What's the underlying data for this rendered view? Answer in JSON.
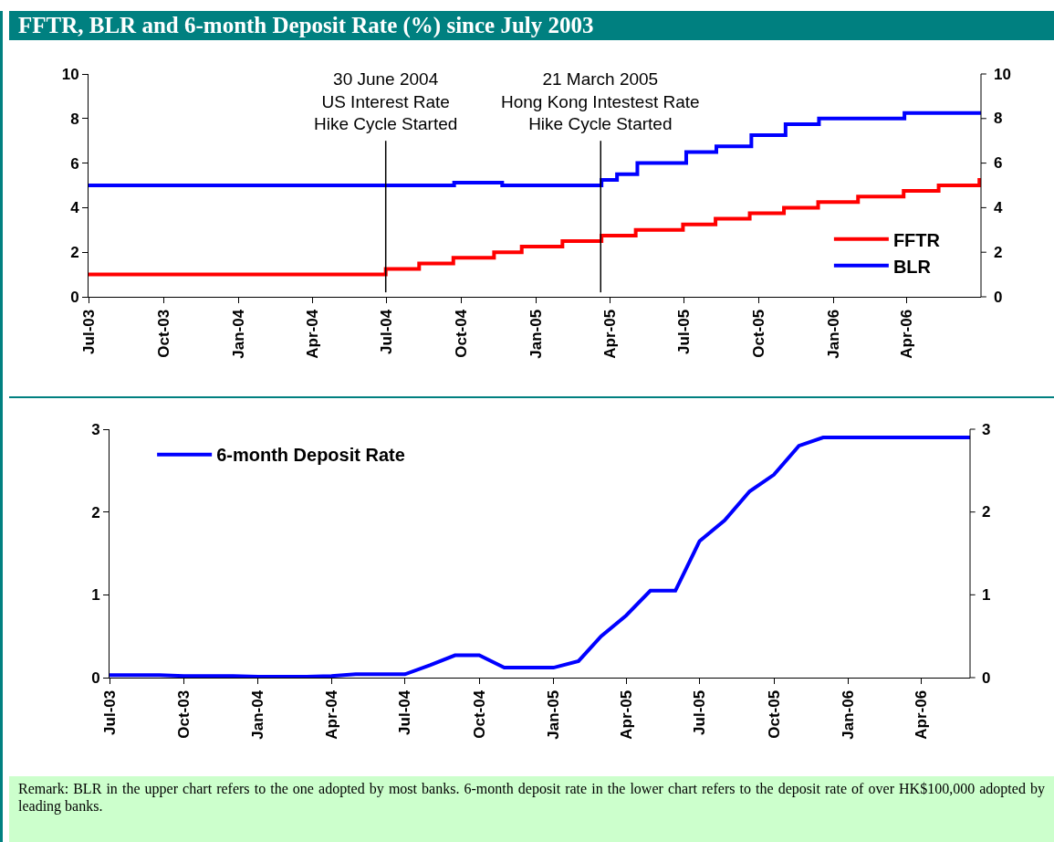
{
  "chart_data": [
    {
      "type": "step",
      "title": "FFTR, BLR and 6-month Deposit Rate (%) since July 2003",
      "series": [
        {
          "name": "FFTR",
          "color": "#ff0000",
          "x": [
            "2003-07-01",
            "2004-06-30",
            "2004-08-10",
            "2004-09-21",
            "2004-11-10",
            "2004-12-14",
            "2005-02-02",
            "2005-03-22",
            "2005-05-03",
            "2005-06-30",
            "2005-08-09",
            "2005-09-20",
            "2005-11-01",
            "2005-12-13",
            "2006-01-31",
            "2006-03-28",
            "2006-05-10",
            "2006-06-29",
            "2006-07-01"
          ],
          "values": [
            1.0,
            1.25,
            1.5,
            1.75,
            2.0,
            2.25,
            2.5,
            2.75,
            3.0,
            3.25,
            3.5,
            3.75,
            4.0,
            4.25,
            4.5,
            4.75,
            5.0,
            5.25,
            5.25
          ]
        },
        {
          "name": "BLR",
          "color": "#0000ff",
          "x": [
            "2003-07-01",
            "2004-09-22",
            "2004-11-20",
            "2005-03-22",
            "2005-04-10",
            "2005-05-05",
            "2005-07-04",
            "2005-08-10",
            "2005-09-22",
            "2005-11-03",
            "2005-12-14",
            "2006-03-29",
            "2006-07-01"
          ],
          "values": [
            5.0,
            5.125,
            5.0,
            5.25,
            5.5,
            6.0,
            6.5,
            6.75,
            7.25,
            7.75,
            8.0,
            8.25,
            8.25
          ]
        }
      ],
      "xlim": [
        "2003-07-01",
        "2006-07-01"
      ],
      "xticks": [
        {
          "value": "2003-07-01",
          "label": "Jul-03"
        },
        {
          "value": "2003-10-01",
          "label": "Oct-03"
        },
        {
          "value": "2004-01-01",
          "label": "Jan-04"
        },
        {
          "value": "2004-04-01",
          "label": "Apr-04"
        },
        {
          "value": "2004-07-01",
          "label": "Jul-04"
        },
        {
          "value": "2004-10-01",
          "label": "Oct-04"
        },
        {
          "value": "2005-01-01",
          "label": "Jan-05"
        },
        {
          "value": "2005-04-01",
          "label": "Apr-05"
        },
        {
          "value": "2005-07-01",
          "label": "Jul-05"
        },
        {
          "value": "2005-10-01",
          "label": "Oct-05"
        },
        {
          "value": "2006-01-01",
          "label": "Jan-06"
        },
        {
          "value": "2006-04-01",
          "label": "Apr-06"
        }
      ],
      "ylim": [
        0,
        10
      ],
      "yticks": [
        0,
        2,
        4,
        6,
        8,
        10
      ],
      "y2lim": [
        0,
        10
      ],
      "y2ticks": [
        0,
        2,
        4,
        6,
        8,
        10
      ],
      "ref_lines": [
        {
          "axis": "x",
          "value": "2004-06-30",
          "label": "30 June 2004\nUS Interest Rate\nHike Cycle Started",
          "color": "#000000"
        },
        {
          "axis": "x",
          "value": "2005-03-21",
          "label": "21 March 2005\nHong Kong Intestest Rate\nHike Cycle Started",
          "color": "#000000"
        }
      ],
      "legend": "right",
      "grid": false
    },
    {
      "type": "line",
      "series": [
        {
          "name": "6-month Deposit Rate",
          "color": "#0000ff",
          "x": [
            "2003-07-01",
            "2003-08-01",
            "2003-09-01",
            "2003-10-01",
            "2003-11-01",
            "2003-12-01",
            "2004-01-01",
            "2004-02-01",
            "2004-03-01",
            "2004-04-01",
            "2004-05-01",
            "2004-06-01",
            "2004-07-01",
            "2004-08-01",
            "2004-09-01",
            "2004-10-01",
            "2004-11-01",
            "2004-12-01",
            "2005-01-01",
            "2005-02-01",
            "2005-03-01",
            "2005-04-01",
            "2005-05-01",
            "2005-06-01",
            "2005-07-01",
            "2005-08-01",
            "2005-09-01",
            "2005-10-01",
            "2005-11-01",
            "2005-12-01",
            "2006-01-01",
            "2006-02-01",
            "2006-03-01",
            "2006-04-01",
            "2006-05-01",
            "2006-06-01"
          ],
          "values": [
            0.03,
            0.03,
            0.03,
            0.02,
            0.02,
            0.02,
            0.01,
            0.01,
            0.01,
            0.02,
            0.04,
            0.04,
            0.04,
            0.15,
            0.27,
            0.27,
            0.12,
            0.12,
            0.12,
            0.2,
            0.5,
            0.75,
            1.05,
            1.05,
            1.65,
            1.9,
            2.25,
            2.45,
            2.8,
            2.9,
            2.9,
            2.9,
            2.9,
            2.9,
            2.9,
            2.9
          ]
        }
      ],
      "xlim": [
        "2003-07-01",
        "2006-06-01"
      ],
      "xticks": [
        {
          "value": "2003-07-01",
          "label": "Jul-03"
        },
        {
          "value": "2003-10-01",
          "label": "Oct-03"
        },
        {
          "value": "2004-01-01",
          "label": "Jan-04"
        },
        {
          "value": "2004-04-01",
          "label": "Apr-04"
        },
        {
          "value": "2004-07-01",
          "label": "Jul-04"
        },
        {
          "value": "2004-10-01",
          "label": "Oct-04"
        },
        {
          "value": "2005-01-01",
          "label": "Jan-05"
        },
        {
          "value": "2005-04-01",
          "label": "Apr-05"
        },
        {
          "value": "2005-07-01",
          "label": "Jul-05"
        },
        {
          "value": "2005-10-01",
          "label": "Oct-05"
        },
        {
          "value": "2006-01-01",
          "label": "Jan-06"
        },
        {
          "value": "2006-04-01",
          "label": "Apr-06"
        }
      ],
      "ylim": [
        0,
        3
      ],
      "yticks": [
        0,
        1,
        2,
        3
      ],
      "y2lim": [
        0,
        3
      ],
      "y2ticks": [
        0,
        1,
        2,
        3
      ],
      "annotations": [
        "Remark: BLR in the upper chart refers to the one adopted by most banks.  6-month deposit rate in the lower chart refers to the deposit rate of over HK$100,000 adopted by leading banks."
      ],
      "legend": "top left",
      "grid": false
    }
  ]
}
